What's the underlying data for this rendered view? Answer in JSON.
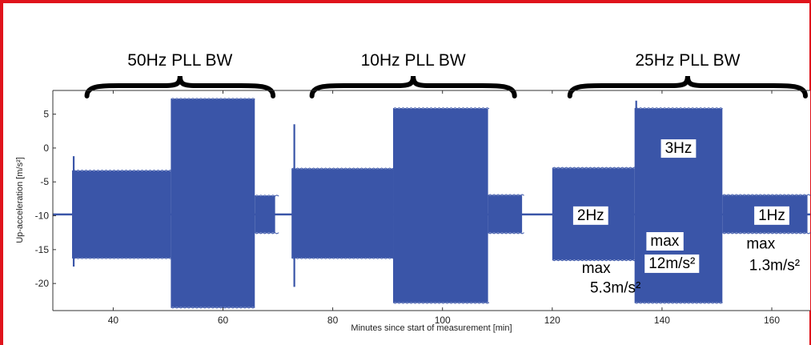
{
  "chart_data": {
    "type": "area",
    "xlabel": "Minutes since start of measurement [min]",
    "ylabel": "Up-acceleration [m/s²]",
    "xlim": [
      29,
      167
    ],
    "ylim": [
      -24,
      8.5
    ],
    "x_ticks": [
      40,
      60,
      80,
      100,
      120,
      140,
      160
    ],
    "y_ticks": [
      5,
      0,
      -5,
      -10,
      -15,
      -20
    ],
    "grid": false,
    "baseline": -9.8,
    "series_color": "#3a55a8",
    "bursts": [
      {
        "x": [
          32.5,
          50.5
        ],
        "y": [
          -3.4,
          -16.2
        ]
      },
      {
        "x": [
          50.5,
          65.8
        ],
        "y": [
          7.2,
          -23.5
        ]
      },
      {
        "x": [
          65.8,
          69.5
        ],
        "y": [
          -7.1,
          -12.5
        ]
      },
      {
        "x": [
          72.5,
          91.0
        ],
        "y": [
          -3.1,
          -16.2
        ]
      },
      {
        "x": [
          91.0,
          108.3
        ],
        "y": [
          5.8,
          -22.8
        ]
      },
      {
        "x": [
          108.3,
          114.5
        ],
        "y": [
          -7.0,
          -12.5
        ]
      },
      {
        "x": [
          120.0,
          135.0
        ],
        "y": [
          -3.0,
          -16.5
        ]
      },
      {
        "x": [
          135.0,
          151.0
        ],
        "y": [
          5.8,
          -22.8
        ]
      },
      {
        "x": [
          151.0,
          166.5
        ],
        "y": [
          -7.0,
          -12.5
        ]
      }
    ],
    "spikes": [
      {
        "x": 32.8,
        "y": [
          -1.2,
          -17.5
        ]
      },
      {
        "x": 73.0,
        "y": [
          3.5,
          -20.5
        ]
      },
      {
        "x": 135.3,
        "y": [
          7.0,
          -15.0
        ]
      }
    ],
    "groups": [
      {
        "label": "50Hz PLL BW",
        "x_range": [
          32,
          70
        ]
      },
      {
        "label": "10Hz PLL BW",
        "x_range": [
          73,
          114
        ]
      },
      {
        "label": "25Hz PLL BW",
        "x_range": [
          120,
          167
        ]
      }
    ],
    "annotations": [
      {
        "text": "3Hz",
        "x": 143,
        "y": 0.1,
        "boxed": true
      },
      {
        "text": "2Hz",
        "x": 127,
        "y": -9.8,
        "boxed": true
      },
      {
        "text": "1Hz",
        "x": 160,
        "y": -9.8,
        "boxed": true
      },
      {
        "text": "max",
        "x": 128,
        "y": -17.6,
        "boxed": false
      },
      {
        "text": "5.3m/s²",
        "x": 131.5,
        "y": -20.5,
        "boxed": false
      },
      {
        "text": "max",
        "x": 140.5,
        "y": -13.6,
        "boxed": true
      },
      {
        "text": "12m/s²",
        "x": 141.8,
        "y": -16.9,
        "boxed": true
      },
      {
        "text": "max",
        "x": 158,
        "y": -14.0,
        "boxed": false
      },
      {
        "text": "1.3m/s²",
        "x": 160.5,
        "y": -17.2,
        "boxed": false
      }
    ]
  }
}
